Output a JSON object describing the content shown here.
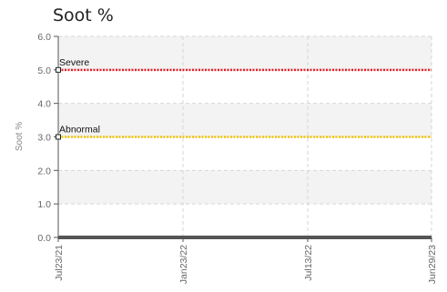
{
  "title": "Soot %",
  "colors": {
    "severe": "#e8202a",
    "abnormal": "#f2c200",
    "baseline": "#555555",
    "band": "#f3f3f3",
    "grid": "#d6d6d6"
  },
  "chart_data": {
    "type": "line",
    "title": "Soot %",
    "xlabel": "",
    "ylabel": "Soot %",
    "ylim": [
      0,
      6
    ],
    "y_ticks": [
      "0.0",
      "1.0",
      "2.0",
      "3.0",
      "4.0",
      "5.0",
      "6.0"
    ],
    "x_ticks": [
      "Jul23/21",
      "Jan23/22",
      "Jul13/22",
      "Jun29/23"
    ],
    "grid": true,
    "series": [
      {
        "name": "Severe",
        "values": [
          5.0,
          5.0,
          5.0,
          5.0
        ],
        "color": "#e8202a",
        "style": "dotted"
      },
      {
        "name": "Abnormal",
        "values": [
          3.0,
          3.0,
          3.0,
          3.0
        ],
        "color": "#f2c200",
        "style": "dotted"
      },
      {
        "values": [
          0.0,
          0.0,
          0.0,
          0.0
        ],
        "color": "#555555",
        "style": "solid"
      }
    ]
  }
}
